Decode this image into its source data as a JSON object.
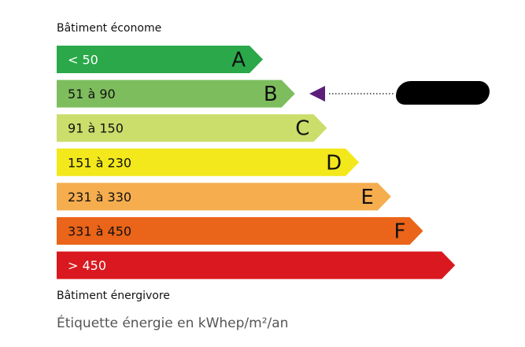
{
  "top_label": "Bâtiment économe",
  "bottom_label": "Bâtiment énergivore",
  "footer": "Étiquette énergie en kWhep/m²/an",
  "chart_data": {
    "type": "bar",
    "categories": [
      "A",
      "B",
      "C",
      "D",
      "E",
      "F",
      "G"
    ],
    "ranges": [
      "< 50",
      "51 à 90",
      "91 à 150",
      "151 à 230",
      "231 à 330",
      "331 à 450",
      "> 450"
    ],
    "letters_shown": [
      "A",
      "B",
      "C",
      "D",
      "E",
      "F",
      ""
    ],
    "colors": [
      "#2aa84a",
      "#7ebd5e",
      "#cbdd6a",
      "#f2e81c",
      "#f5ad4e",
      "#ea6419",
      "#d9191f"
    ],
    "text_colors": [
      "#ffffff",
      "#111111",
      "#111111",
      "#111111",
      "#111111",
      "#111111",
      "#ffffff"
    ],
    "selected_class": "B",
    "indicator_color": "#5b1f7a"
  }
}
